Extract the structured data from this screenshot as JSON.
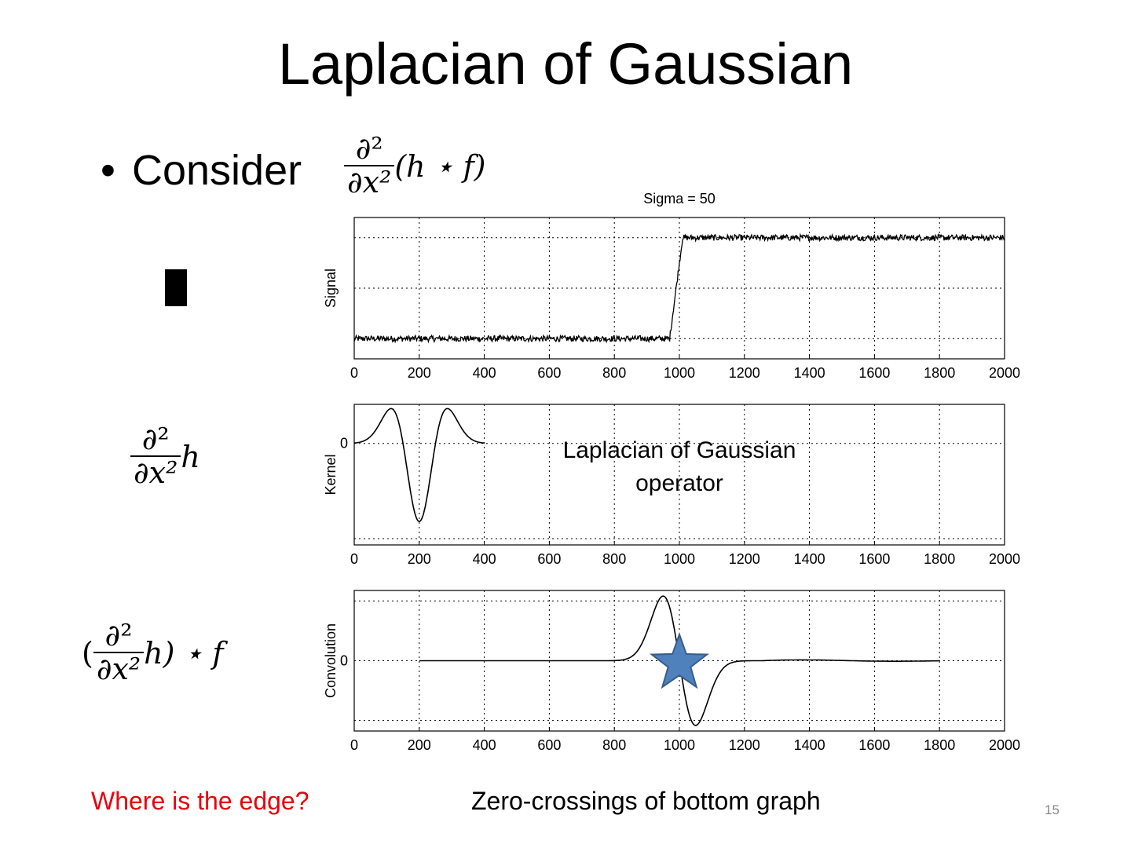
{
  "slide": {
    "title": "Laplacian of Gaussian",
    "bullet": "Consider",
    "page_number": "15"
  },
  "formulas": {
    "consider": {
      "partial_num": "∂²",
      "partial_den": "∂x²",
      "rest": "(h ⋆ f)"
    },
    "kernel": {
      "partial_num": "∂²",
      "partial_den": "∂x²",
      "rest": "h"
    },
    "convolution": {
      "open": "(",
      "partial_num": "∂²",
      "partial_den": "∂x²",
      "rest": "h) ⋆ f"
    }
  },
  "captions": {
    "question": "Where is the edge?",
    "answer": "Zero-crossings of bottom graph"
  },
  "annotation": {
    "line1": "Laplacian of Gaussian",
    "line2": "operator"
  },
  "colors": {
    "question_text": "#e8000b",
    "star_fill": "#4f81bd",
    "star_stroke": "#385d8a"
  },
  "chart_data": [
    {
      "type": "line",
      "title": "Sigma = 50",
      "xlabel": "",
      "ylabel": "Signal",
      "xlim": [
        0,
        2000
      ],
      "x_ticks": [
        "0",
        "200",
        "400",
        "600",
        "800",
        "1000",
        "1200",
        "1400",
        "1600",
        "1800",
        "2000"
      ],
      "y_ticks": [],
      "grid": true,
      "series": [
        {
          "description_points": {
            "x": [
              0,
              970,
              1010,
              2000
            ],
            "y": [
              -1,
              -1,
              1,
              1
            ]
          },
          "noise_amplitude": 0.06
        }
      ],
      "ylim": [
        -1.4,
        1.4
      ]
    },
    {
      "type": "line",
      "title": "",
      "xlabel": "",
      "ylabel": "Kernel",
      "xlim": [
        0,
        2000
      ],
      "x_ticks": [
        "0",
        "200",
        "400",
        "600",
        "800",
        "1000",
        "1200",
        "1400",
        "1600",
        "1800",
        "2000"
      ],
      "y_ticks": [
        "0"
      ],
      "grid": true,
      "series": [
        {
          "center": 200,
          "sigma": 50,
          "x_range": [
            0,
            400
          ],
          "min": -1.0,
          "side_max": 0.45
        }
      ],
      "ylim": [
        -1.3,
        0.5
      ]
    },
    {
      "type": "line",
      "title": "",
      "xlabel": "",
      "ylabel": "Convolution",
      "xlim": [
        0,
        2000
      ],
      "x_ticks": [
        "0",
        "200",
        "400",
        "600",
        "800",
        "1000",
        "1200",
        "1400",
        "1600",
        "1800",
        "2000"
      ],
      "y_ticks": [
        "0"
      ],
      "grid": true,
      "series": [
        {
          "x_range": [
            200,
            1800
          ],
          "zero_crossing": 1000,
          "peak": [
            945,
            0.92
          ],
          "trough": [
            1055,
            -0.92
          ]
        }
      ],
      "ylim": [
        -1.0,
        1.0
      ]
    }
  ]
}
